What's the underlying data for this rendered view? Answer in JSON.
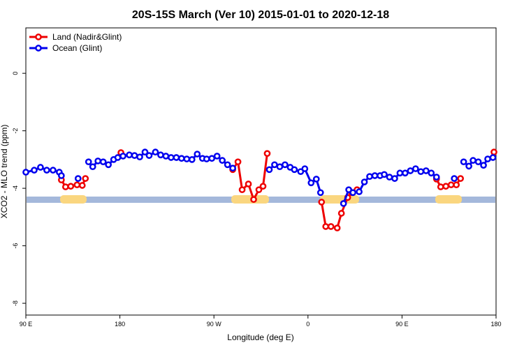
{
  "chart_data": {
    "type": "line",
    "title": "20S-15S March (Ver 10)   2015-01-01 to 2020-12-18",
    "x_label": "Longitude (deg E)",
    "y_label": "XCO2 - MLO trend (ppm)",
    "xlim": [
      90,
      540
    ],
    "xticks": [
      {
        "value": 90,
        "label": "90 E"
      },
      180,
      {
        "value": 270,
        "label": "90 W"
      },
      {
        "value": 360,
        "label": "0"
      },
      {
        "value": 450,
        "label": "90 E"
      },
      {
        "value": 540,
        "label": "180"
      }
    ],
    "ylim": [
      -8.41,
      1.58
    ],
    "yticks": [
      0,
      -2,
      -4,
      -6,
      -8
    ],
    "legend": "topleft",
    "series": [
      {
        "name": "Land (Nadir&Glint)",
        "color": "#ee0000",
        "x": [
          124,
          128,
          133,
          139,
          144,
          147,
          null,
          181,
          null,
          288,
          293,
          297,
          303,
          308,
          313,
          317,
          321,
          null,
          373,
          377,
          382,
          388,
          392,
          398,
          402,
          407,
          null,
          483,
          487,
          492,
          497,
          502,
          506,
          null,
          538
        ],
        "values": [
          -3.71,
          -3.95,
          -3.93,
          -3.88,
          -3.9,
          -3.66,
          null,
          -2.76,
          null,
          -3.35,
          -3.08,
          -4.05,
          -3.85,
          -4.39,
          -4.05,
          -3.93,
          -2.79,
          null,
          -4.48,
          -5.33,
          -5.33,
          -5.38,
          -4.87,
          -4.32,
          -4.15,
          -4.05,
          null,
          -3.68,
          -3.95,
          -3.93,
          -3.88,
          -3.88,
          -3.66,
          null,
          -2.74
        ]
      },
      {
        "name": "Ocean (Glint)",
        "color": "#0000ee",
        "x": [
          90,
          98,
          104,
          110,
          116,
          122,
          124,
          null,
          140,
          null,
          150,
          154,
          159,
          164,
          169,
          174,
          178,
          183,
          189,
          194,
          199,
          204,
          208,
          214,
          219,
          224,
          229,
          234,
          239,
          244,
          249,
          254,
          259,
          263,
          268,
          273,
          278,
          283,
          288,
          null,
          323,
          328,
          333,
          338,
          343,
          347,
          353,
          357,
          363,
          368,
          372,
          null,
          394,
          399,
          403,
          409,
          414,
          419,
          424,
          429,
          433,
          438,
          443,
          448,
          453,
          458,
          463,
          468,
          473,
          478,
          483,
          null,
          500,
          null,
          509,
          514,
          518,
          523,
          528,
          532,
          537
        ],
        "values": [
          -3.44,
          -3.37,
          -3.27,
          -3.37,
          -3.37,
          -3.44,
          -3.56,
          null,
          -3.66,
          null,
          -3.08,
          -3.25,
          -3.05,
          -3.08,
          -3.18,
          -3.0,
          -2.93,
          -2.88,
          -2.84,
          -2.86,
          -2.91,
          -2.74,
          -2.86,
          -2.74,
          -2.84,
          -2.88,
          -2.93,
          -2.93,
          -2.96,
          -2.98,
          -3.0,
          -2.81,
          -2.96,
          -2.98,
          -2.96,
          -2.88,
          -3.03,
          -3.18,
          -3.3,
          null,
          -3.35,
          -3.18,
          -3.25,
          -3.18,
          -3.27,
          -3.35,
          -3.42,
          -3.32,
          -3.81,
          -3.68,
          -4.15,
          null,
          -4.53,
          -4.05,
          -4.15,
          -4.12,
          -3.78,
          -3.59,
          -3.56,
          -3.56,
          -3.52,
          -3.61,
          -3.66,
          -3.47,
          -3.47,
          -3.39,
          -3.32,
          -3.42,
          -3.39,
          -3.47,
          -3.61,
          null,
          -3.66,
          null,
          -3.08,
          -3.23,
          -3.03,
          -3.08,
          -3.2,
          -2.98,
          -2.93
        ]
      }
    ]
  }
}
